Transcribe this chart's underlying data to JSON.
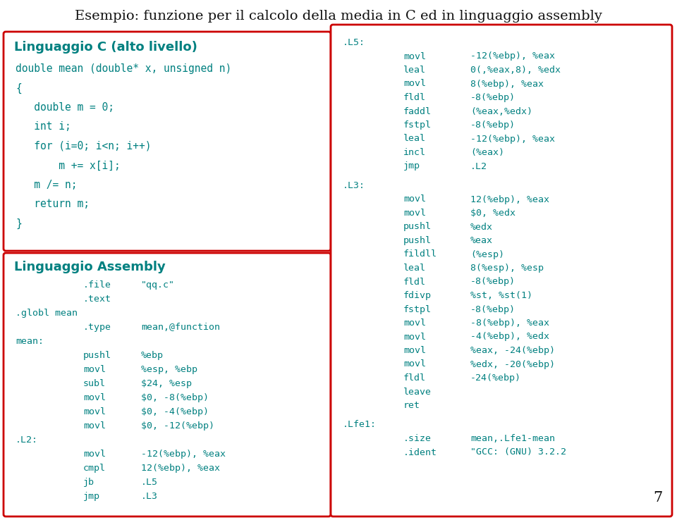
{
  "title": "Esempio: funzione per il calcolo della media in C ed in linguaggio assembly",
  "title_fontsize": 14,
  "bg_color": "#ffffff",
  "box_edge_color": "#cc0000",
  "text_color": "#008080",
  "page_number": "7",
  "c_header": "Linguaggio C (alto livello)",
  "c_code": [
    "double mean (double* x, unsigned n)",
    "{",
    "   double m = 0;",
    "   int i;",
    "   for (i=0; i<n; i++)",
    "       m += x[i];",
    "   m /= n;",
    "   return m;",
    "}"
  ],
  "asm_header": "Linguaggio Assembly",
  "asm_left": [
    [
      "",
      ".file",
      "\"qq.c\""
    ],
    [
      "",
      ".text",
      ""
    ],
    [
      ".globl mean",
      "",
      ""
    ],
    [
      "",
      ".type",
      "mean,@function"
    ],
    [
      "mean:",
      "",
      ""
    ],
    [
      "",
      "pushl",
      "%ebp"
    ],
    [
      "",
      "movl",
      "%esp, %ebp"
    ],
    [
      "",
      "subl",
      "$24, %esp"
    ],
    [
      "",
      "movl",
      "$0, -8(%ebp)"
    ],
    [
      "",
      "movl",
      "$0, -4(%ebp)"
    ],
    [
      "",
      "movl",
      "$0, -12(%ebp)"
    ],
    [
      ".L2:",
      "",
      ""
    ],
    [
      "",
      "movl",
      "-12(%ebp), %eax"
    ],
    [
      "",
      "cmpl",
      "12(%ebp), %eax"
    ],
    [
      "",
      "jb",
      ".L5"
    ],
    [
      "",
      "jmp",
      ".L3"
    ]
  ],
  "asm_right_l5": [
    [
      ".L5:",
      "",
      ""
    ],
    [
      "",
      "movl",
      "-12(%ebp), %eax"
    ],
    [
      "",
      "leal",
      "0(,%eax,8), %edx"
    ],
    [
      "",
      "movl",
      "8(%ebp), %eax"
    ],
    [
      "",
      "fldl",
      "-8(%ebp)"
    ],
    [
      "",
      "faddl",
      "(%eax,%edx)"
    ],
    [
      "",
      "fstpl",
      "-8(%ebp)"
    ],
    [
      "",
      "leal",
      "-12(%ebp), %eax"
    ],
    [
      "",
      "incl",
      "(%eax)"
    ],
    [
      "",
      "jmp",
      ".L2"
    ]
  ],
  "asm_right_l3": [
    [
      ".L3:",
      "",
      ""
    ],
    [
      "",
      "movl",
      "12(%ebp), %eax"
    ],
    [
      "",
      "movl",
      "$0, %edx"
    ],
    [
      "",
      "pushl",
      "%edx"
    ],
    [
      "",
      "pushl",
      "%eax"
    ],
    [
      "",
      "fildll",
      "(%esp)"
    ],
    [
      "",
      "leal",
      "8(%esp), %esp"
    ],
    [
      "",
      "fldl",
      "-8(%ebp)"
    ],
    [
      "",
      "fdivp",
      "%st, %st(1)"
    ],
    [
      "",
      "fstpl",
      "-8(%ebp)"
    ],
    [
      "",
      "movl",
      "-8(%ebp), %eax"
    ],
    [
      "",
      "movl",
      "-4(%ebp), %edx"
    ],
    [
      "",
      "movl",
      "%eax, -24(%ebp)"
    ],
    [
      "",
      "movl",
      "%edx, -20(%ebp)"
    ],
    [
      "",
      "fldl",
      "-24(%ebp)"
    ],
    [
      "",
      "leave",
      ""
    ],
    [
      "",
      "ret",
      ""
    ]
  ],
  "asm_right_lfe": [
    [
      ".Lfe1:",
      "",
      ""
    ],
    [
      "",
      ".size",
      "mean,.Lfe1-mean"
    ],
    [
      "",
      ".ident",
      "\"GCC: (GNU) 3.2.2"
    ]
  ]
}
